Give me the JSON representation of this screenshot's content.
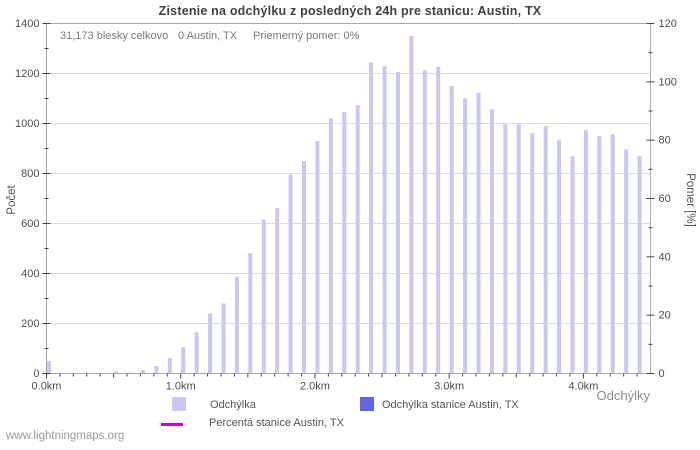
{
  "page": {
    "title": "Zistenie na odchýlku z posledných 24h pre stanicu: Austin, TX",
    "watermark": "www.lightningmaps.org"
  },
  "annotations": {
    "total": "31,173 blesky celkovo",
    "station": "0 Austin, TX",
    "avg_ratio": "Priemerný pomer: 0%"
  },
  "legend": {
    "items": [
      {
        "label": "Odchýlka",
        "swatch": "square",
        "color_key": "bar"
      },
      {
        "label": "Odchýlka stanice Austin, TX",
        "swatch": "square",
        "color_key": "station_bar"
      },
      {
        "label": "Percentá stanice Austin, TX",
        "swatch": "line",
        "color_key": "percent_line"
      }
    ]
  },
  "colors": {
    "bar": "#c8c8f0",
    "station_bar": "#6464e6",
    "percent_line": "#cc00cc",
    "grid": "#dcdcdc",
    "frame": "#a8a8a8",
    "tick": "#444444",
    "tick_label": "#4d4d4d"
  },
  "chart_data": {
    "type": "bar",
    "title": "Zistenie na odchýlku z posledných 24h pre stanicu: Austin, TX",
    "xlabel": "Odchýlky",
    "ylabel_left": "Počet",
    "ylabel_right": "Pomer [%]",
    "x_unit": "km",
    "xlim": [
      0,
      4.5
    ],
    "ylim_left": [
      0,
      1400
    ],
    "ylim_right": [
      0,
      120
    ],
    "grid": "horizontal",
    "legend_position": "bottom",
    "left_tick_labels": [
      "0",
      "200",
      "400",
      "600",
      "800",
      "1000",
      "1200",
      "1400"
    ],
    "right_tick_labels": [
      "0",
      "20",
      "40",
      "60",
      "80",
      "100",
      "120"
    ],
    "x_tick_labels": [
      "0.0km",
      "1.0km",
      "2.0km",
      "3.0km",
      "4.0km"
    ],
    "x": [
      0.0,
      0.1,
      0.2,
      0.3,
      0.4,
      0.5,
      0.6,
      0.7,
      0.8,
      0.9,
      1.0,
      1.1,
      1.2,
      1.3,
      1.4,
      1.5,
      1.6,
      1.7,
      1.8,
      1.9,
      2.0,
      2.1,
      2.2,
      2.3,
      2.4,
      2.5,
      2.6,
      2.7,
      2.8,
      2.9,
      3.0,
      3.1,
      3.2,
      3.3,
      3.4,
      3.5,
      3.6,
      3.7,
      3.8,
      3.9,
      4.0,
      4.1,
      4.2,
      4.3,
      4.4
    ],
    "series": [
      {
        "name": "Odchýlka",
        "color_key": "bar",
        "drawn": true,
        "values": [
          50,
          0,
          0,
          0,
          0,
          8,
          4,
          13,
          30,
          62,
          105,
          165,
          240,
          280,
          387,
          482,
          616,
          662,
          796,
          850,
          930,
          1020,
          1046,
          1073,
          1244,
          1229,
          1206,
          1350,
          1213,
          1227,
          1150,
          1100,
          1123,
          1056,
          997,
          996,
          962,
          989,
          933,
          869,
          973,
          949,
          957,
          896,
          870
        ]
      },
      {
        "name": "Odchýlka stanice Austin, TX",
        "color_key": "station_bar",
        "drawn": true,
        "values": [
          0,
          0,
          0,
          0,
          0,
          0,
          0,
          0,
          0,
          0,
          0,
          0,
          0,
          0,
          0,
          0,
          0,
          0,
          0,
          0,
          0,
          0,
          0,
          0,
          0,
          0,
          0,
          0,
          0,
          0,
          0,
          0,
          0,
          0,
          0,
          0,
          0,
          0,
          0,
          0,
          0,
          0,
          0,
          0,
          0
        ]
      },
      {
        "name": "Percentá stanice Austin, TX",
        "type": "line",
        "color_key": "percent_line",
        "drawn": false,
        "axis": "right",
        "values": [
          0,
          0,
          0,
          0,
          0,
          0,
          0,
          0,
          0,
          0,
          0,
          0,
          0,
          0,
          0,
          0,
          0,
          0,
          0,
          0,
          0,
          0,
          0,
          0,
          0,
          0,
          0,
          0,
          0,
          0,
          0,
          0,
          0,
          0,
          0,
          0,
          0,
          0,
          0,
          0,
          0,
          0,
          0,
          0,
          0
        ]
      }
    ]
  }
}
